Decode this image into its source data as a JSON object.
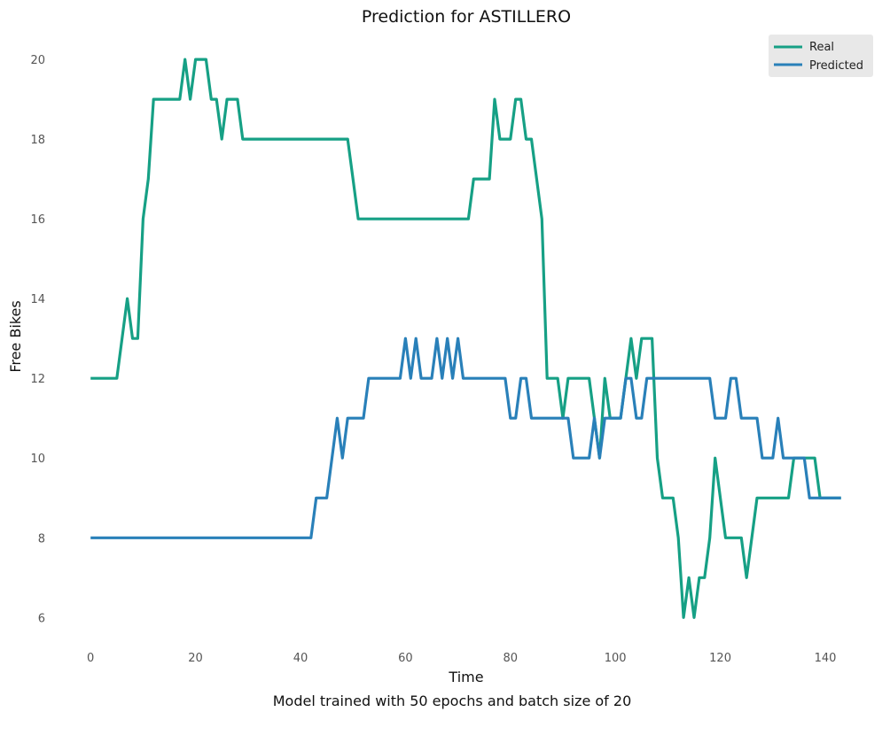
{
  "chart_data": {
    "type": "line",
    "title": "Prediction for ASTILLERO",
    "xlabel": "Time",
    "ylabel": "Free Bikes",
    "caption": "Model trained with 50 epochs and batch size of 20",
    "xlim": [
      -3,
      146
    ],
    "ylim": [
      5.2,
      20.8
    ],
    "xticks": [
      0,
      20,
      40,
      60,
      80,
      100,
      120,
      140
    ],
    "yticks": [
      6,
      8,
      10,
      12,
      14,
      16,
      18,
      20
    ],
    "grid": false,
    "legend_position": "top-right",
    "series": [
      {
        "name": "Real",
        "color": "#16a085",
        "points": [
          [
            0,
            12
          ],
          [
            5,
            12
          ],
          [
            7,
            14
          ],
          [
            8,
            13
          ],
          [
            9,
            13
          ],
          [
            10,
            16
          ],
          [
            11,
            17
          ],
          [
            12,
            19
          ],
          [
            17,
            19
          ],
          [
            18,
            20
          ],
          [
            19,
            19
          ],
          [
            20,
            20
          ],
          [
            22,
            20
          ],
          [
            23,
            19
          ],
          [
            24,
            19
          ],
          [
            25,
            18
          ],
          [
            26,
            19
          ],
          [
            28,
            19
          ],
          [
            29,
            18
          ],
          [
            49,
            18
          ],
          [
            50,
            17
          ],
          [
            51,
            16
          ],
          [
            72,
            16
          ],
          [
            73,
            17
          ],
          [
            76,
            17
          ],
          [
            77,
            19
          ],
          [
            78,
            18
          ],
          [
            80,
            18
          ],
          [
            81,
            19
          ],
          [
            82,
            19
          ],
          [
            83,
            18
          ],
          [
            84,
            18
          ],
          [
            86,
            16
          ],
          [
            87,
            12
          ],
          [
            89,
            12
          ],
          [
            90,
            11
          ],
          [
            91,
            12
          ],
          [
            95,
            12
          ],
          [
            96,
            11
          ],
          [
            97,
            10
          ],
          [
            98,
            12
          ],
          [
            99,
            11
          ],
          [
            101,
            11
          ],
          [
            103,
            13
          ],
          [
            104,
            12
          ],
          [
            105,
            13
          ],
          [
            107,
            13
          ],
          [
            108,
            10
          ],
          [
            109,
            9
          ],
          [
            111,
            9
          ],
          [
            112,
            8
          ],
          [
            113,
            6
          ],
          [
            114,
            7
          ],
          [
            115,
            6
          ],
          [
            116,
            7
          ],
          [
            117,
            7
          ],
          [
            118,
            8
          ],
          [
            119,
            10
          ],
          [
            121,
            8
          ],
          [
            124,
            8
          ],
          [
            125,
            7
          ],
          [
            127,
            9
          ],
          [
            133,
            9
          ],
          [
            134,
            10
          ],
          [
            138,
            10
          ],
          [
            139,
            9
          ],
          [
            143,
            9
          ]
        ]
      },
      {
        "name": "Predicted",
        "color": "#2980b9",
        "points": [
          [
            0,
            8
          ],
          [
            42,
            8
          ],
          [
            43,
            9
          ],
          [
            45,
            9
          ],
          [
            47,
            11
          ],
          [
            48,
            10
          ],
          [
            49,
            11
          ],
          [
            52,
            11
          ],
          [
            53,
            12
          ],
          [
            59,
            12
          ],
          [
            60,
            13
          ],
          [
            61,
            12
          ],
          [
            62,
            13
          ],
          [
            63,
            12
          ],
          [
            65,
            12
          ],
          [
            66,
            13
          ],
          [
            67,
            12
          ],
          [
            68,
            13
          ],
          [
            69,
            12
          ],
          [
            70,
            13
          ],
          [
            71,
            12
          ],
          [
            79,
            12
          ],
          [
            80,
            11
          ],
          [
            81,
            11
          ],
          [
            82,
            12
          ],
          [
            83,
            12
          ],
          [
            84,
            11
          ],
          [
            91,
            11
          ],
          [
            92,
            10
          ],
          [
            95,
            10
          ],
          [
            96,
            11
          ],
          [
            97,
            10
          ],
          [
            98,
            11
          ],
          [
            101,
            11
          ],
          [
            102,
            12
          ],
          [
            103,
            12
          ],
          [
            104,
            11
          ],
          [
            105,
            11
          ],
          [
            106,
            12
          ],
          [
            118,
            12
          ],
          [
            119,
            11
          ],
          [
            121,
            11
          ],
          [
            122,
            12
          ],
          [
            123,
            12
          ],
          [
            124,
            11
          ],
          [
            127,
            11
          ],
          [
            128,
            10
          ],
          [
            130,
            10
          ],
          [
            131,
            11
          ],
          [
            132,
            10
          ],
          [
            136,
            10
          ],
          [
            137,
            9
          ],
          [
            143,
            9
          ]
        ]
      }
    ]
  }
}
